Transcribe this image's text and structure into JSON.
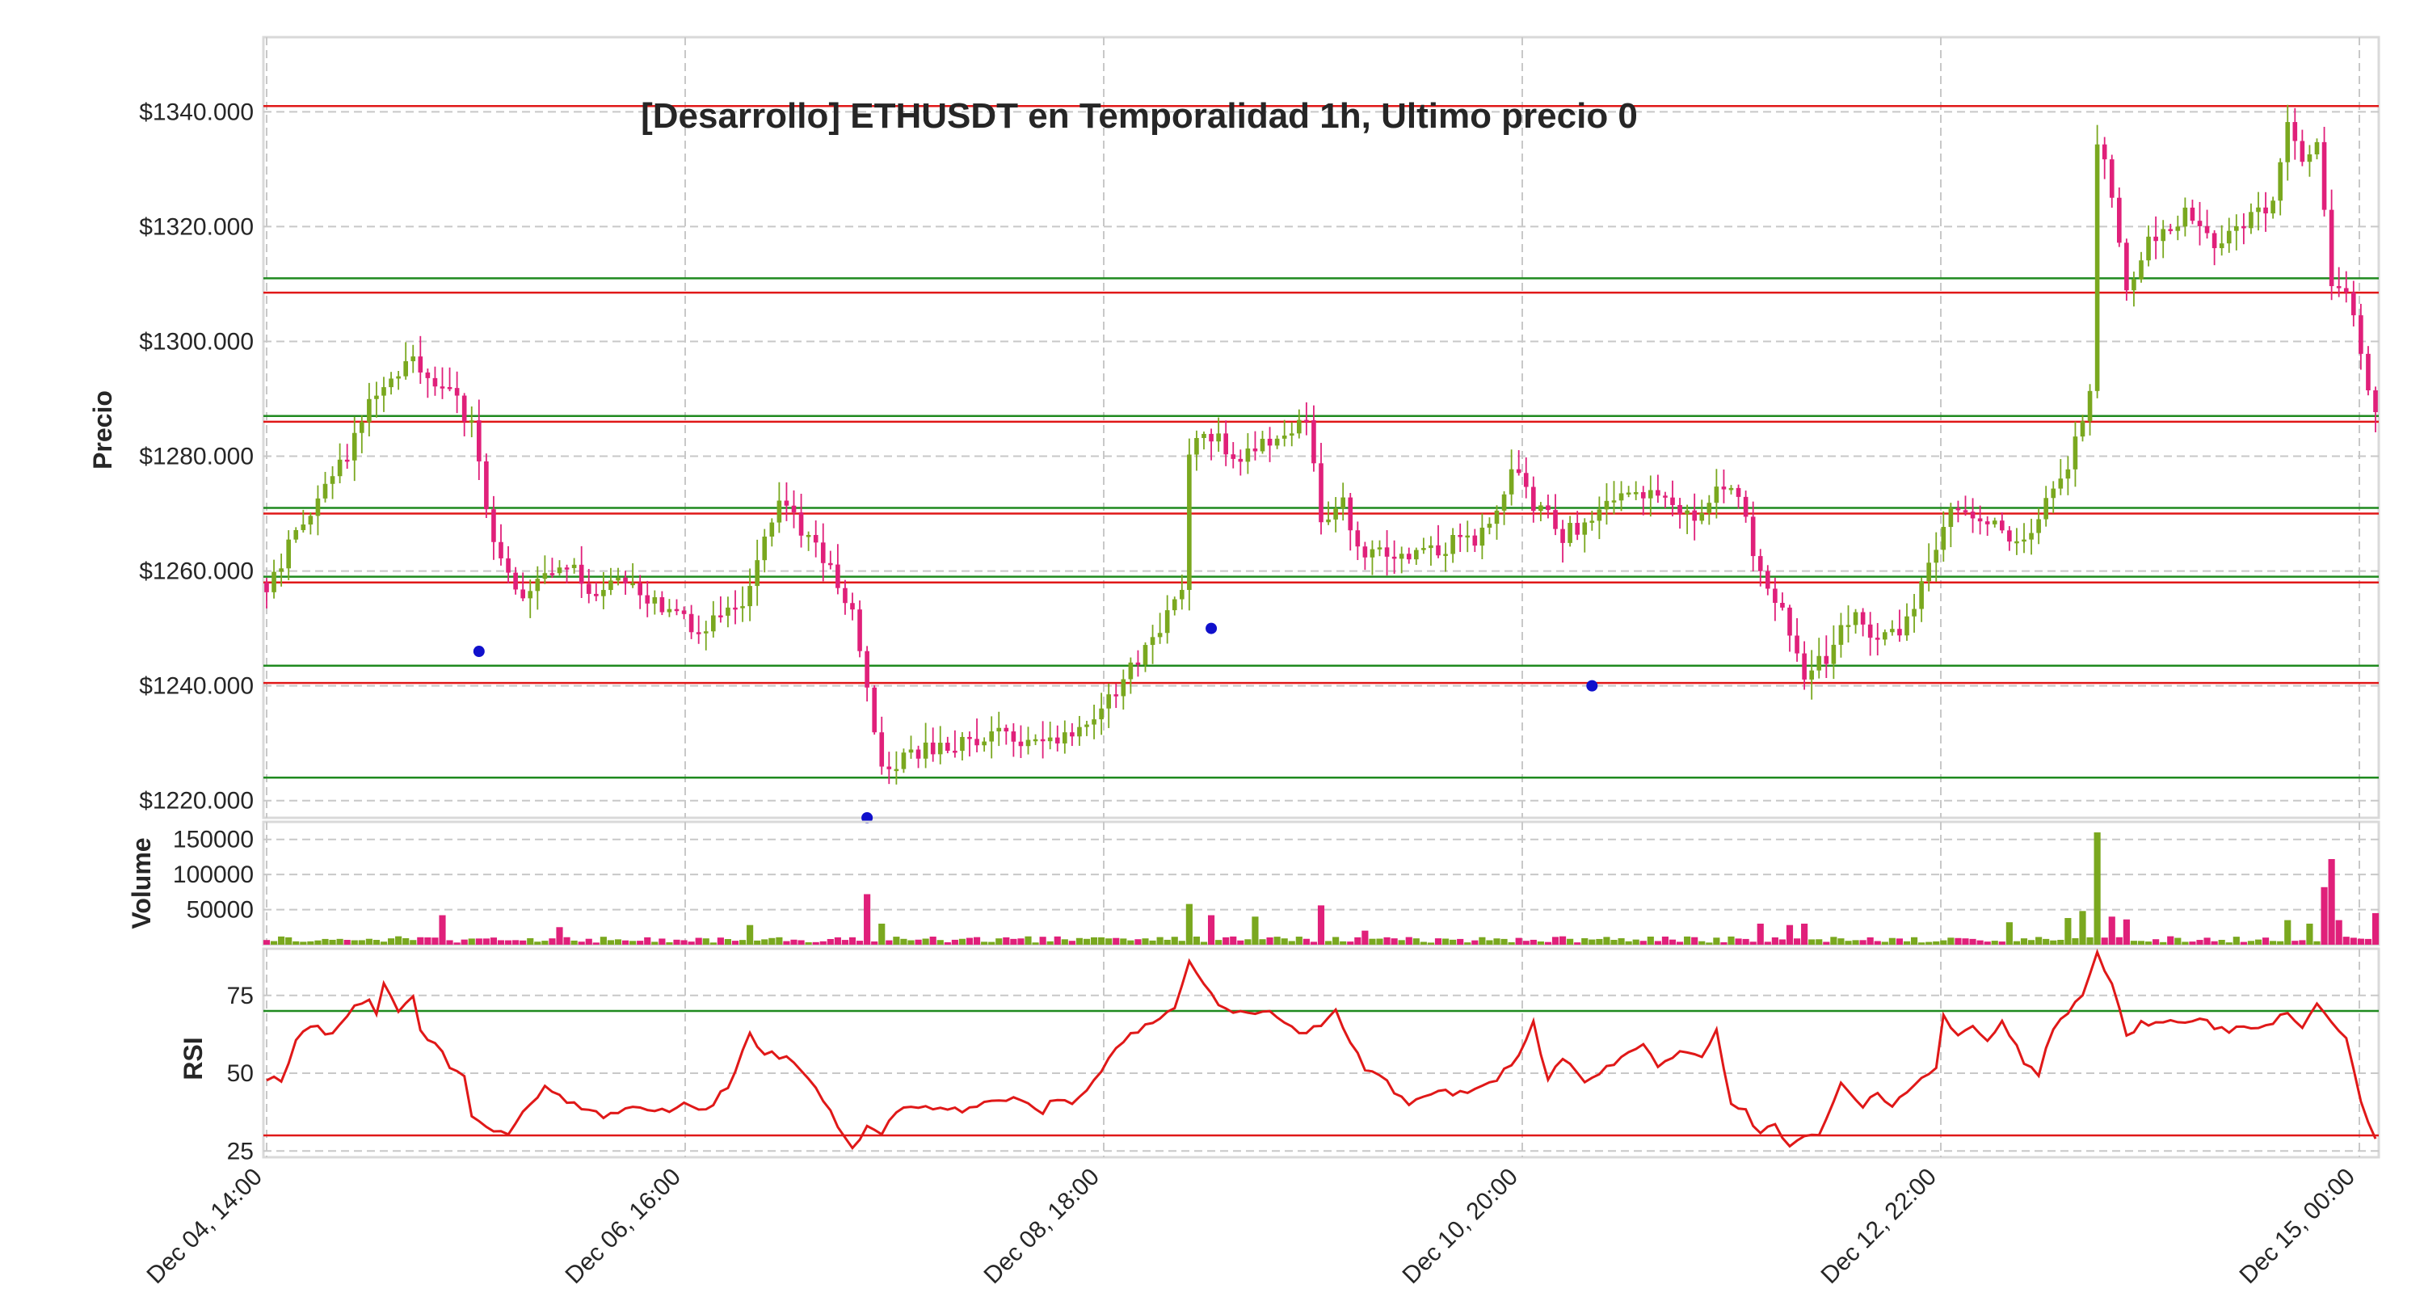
{
  "chart_data": [
    {
      "type": "candlestick",
      "title": "[Desarrollo] ETHUSDT en Temporalidad 1h, Ultimo precio 0",
      "ylabel": "Precio",
      "ylim": [
        1217,
        1353
      ],
      "yticks": [
        1220,
        1240,
        1260,
        1280,
        1300,
        1320,
        1340
      ],
      "ytick_labels": [
        "$1220.000",
        "$1240.000",
        "$1260.000",
        "$1280.000",
        "$1300.000",
        "$1320.000",
        "$1340.000"
      ],
      "x_tick_labels": [
        "Dec 04, 14:00",
        "Dec 06, 16:00",
        "Dec 08, 18:00",
        "Dec 10, 20:00",
        "Dec 12, 22:00",
        "Dec 15, 00:00"
      ],
      "grid": true,
      "colors": {
        "up": "#7aa81f",
        "down": "#e0207a",
        "support": "#1f8a1f",
        "resistance": "#e01818",
        "marker": "#1010cc"
      },
      "support_lines": [
        1224,
        1243.5,
        1259,
        1271,
        1287,
        1311
      ],
      "resistance_lines": [
        1240.5,
        1258,
        1270,
        1286,
        1308.5,
        1341
      ],
      "anchors": [
        [
          0,
          1258
        ],
        [
          5,
          1268
        ],
        [
          10,
          1278
        ],
        [
          15,
          1292
        ],
        [
          20,
          1296
        ],
        [
          25,
          1292
        ],
        [
          28,
          1285
        ],
        [
          31,
          1265
        ],
        [
          35,
          1255
        ],
        [
          40,
          1262
        ],
        [
          45,
          1256
        ],
        [
          50,
          1258
        ],
        [
          55,
          1252
        ],
        [
          60,
          1250
        ],
        [
          65,
          1254
        ],
        [
          70,
          1272
        ],
        [
          75,
          1265
        ],
        [
          80,
          1252
        ],
        [
          82,
          1238
        ],
        [
          84,
          1225
        ],
        [
          88,
          1228
        ],
        [
          95,
          1230
        ],
        [
          100,
          1232
        ],
        [
          105,
          1230
        ],
        [
          110,
          1232
        ],
        [
          115,
          1237
        ],
        [
          120,
          1246
        ],
        [
          125,
          1256
        ],
        [
          126,
          1280
        ],
        [
          128,
          1285
        ],
        [
          133,
          1280
        ],
        [
          138,
          1284
        ],
        [
          142,
          1287
        ],
        [
          144,
          1270
        ],
        [
          147,
          1272
        ],
        [
          150,
          1262
        ],
        [
          154,
          1263
        ],
        [
          160,
          1264
        ],
        [
          165,
          1266
        ],
        [
          168,
          1270
        ],
        [
          170,
          1279
        ],
        [
          173,
          1272
        ],
        [
          177,
          1266
        ],
        [
          182,
          1270
        ],
        [
          185,
          1274
        ],
        [
          190,
          1274
        ],
        [
          195,
          1270
        ],
        [
          200,
          1276
        ],
        [
          204,
          1260
        ],
        [
          207,
          1252
        ],
        [
          210,
          1242
        ],
        [
          213,
          1245
        ],
        [
          217,
          1254
        ],
        [
          220,
          1248
        ],
        [
          223,
          1250
        ],
        [
          227,
          1260
        ],
        [
          230,
          1271
        ],
        [
          233,
          1269
        ],
        [
          236,
          1268
        ],
        [
          240,
          1264
        ],
        [
          243,
          1272
        ],
        [
          246,
          1278
        ],
        [
          249,
          1290
        ],
        [
          250,
          1336
        ],
        [
          252,
          1325
        ],
        [
          254,
          1308
        ],
        [
          257,
          1318
        ],
        [
          262,
          1322
        ],
        [
          266,
          1316
        ],
        [
          270,
          1320
        ],
        [
          274,
          1325
        ],
        [
          276,
          1338
        ],
        [
          278,
          1330
        ],
        [
          280,
          1336
        ],
        [
          282,
          1310
        ],
        [
          285,
          1306
        ],
        [
          287,
          1290
        ],
        [
          288,
          1289
        ]
      ],
      "min_markers": [
        {
          "x": 29,
          "y": 1246
        },
        {
          "x": 82,
          "y": 1217
        },
        {
          "x": 129,
          "y": 1250
        },
        {
          "x": 181,
          "y": 1240
        }
      ],
      "n_bars": 289
    },
    {
      "type": "bar",
      "ylabel": "Volume",
      "ylim": [
        0,
        175000
      ],
      "yticks": [
        50000,
        100000,
        150000
      ],
      "ytick_labels": [
        "50000",
        "100000",
        "150000"
      ],
      "spikes": [
        {
          "x": 24,
          "v": 42000,
          "dir": "down"
        },
        {
          "x": 40,
          "v": 25000,
          "dir": "down"
        },
        {
          "x": 66,
          "v": 28000,
          "dir": "up"
        },
        {
          "x": 82,
          "v": 72000,
          "dir": "down"
        },
        {
          "x": 84,
          "v": 30000,
          "dir": "up"
        },
        {
          "x": 126,
          "v": 58000,
          "dir": "up"
        },
        {
          "x": 129,
          "v": 42000,
          "dir": "down"
        },
        {
          "x": 135,
          "v": 40000,
          "dir": "up"
        },
        {
          "x": 144,
          "v": 56000,
          "dir": "down"
        },
        {
          "x": 150,
          "v": 20000,
          "dir": "down"
        },
        {
          "x": 204,
          "v": 30000,
          "dir": "down"
        },
        {
          "x": 208,
          "v": 28000,
          "dir": "down"
        },
        {
          "x": 210,
          "v": 30000,
          "dir": "down"
        },
        {
          "x": 238,
          "v": 32000,
          "dir": "up"
        },
        {
          "x": 246,
          "v": 38000,
          "dir": "up"
        },
        {
          "x": 248,
          "v": 48000,
          "dir": "up"
        },
        {
          "x": 250,
          "v": 160000,
          "dir": "up"
        },
        {
          "x": 252,
          "v": 40000,
          "dir": "down"
        },
        {
          "x": 254,
          "v": 36000,
          "dir": "down"
        },
        {
          "x": 276,
          "v": 35000,
          "dir": "up"
        },
        {
          "x": 279,
          "v": 30000,
          "dir": "up"
        },
        {
          "x": 281,
          "v": 82000,
          "dir": "down"
        },
        {
          "x": 282,
          "v": 122000,
          "dir": "down"
        },
        {
          "x": 283,
          "v": 35000,
          "dir": "down"
        },
        {
          "x": 288,
          "v": 45000,
          "dir": "down"
        }
      ]
    },
    {
      "type": "line",
      "ylabel": "RSI",
      "ylim": [
        23,
        90
      ],
      "yticks": [
        25,
        50,
        75
      ],
      "ytick_labels": [
        "25",
        "50",
        "75"
      ],
      "upper_band": 70,
      "lower_band": 30,
      "line_color": "#e01818",
      "anchors": [
        [
          0,
          48
        ],
        [
          2,
          48
        ],
        [
          4,
          60
        ],
        [
          6,
          66
        ],
        [
          9,
          62
        ],
        [
          12,
          72
        ],
        [
          14,
          74
        ],
        [
          15,
          70
        ],
        [
          16,
          78
        ],
        [
          18,
          70
        ],
        [
          20,
          74
        ],
        [
          21,
          63
        ],
        [
          23,
          60
        ],
        [
          25,
          52
        ],
        [
          27,
          50
        ],
        [
          28,
          36
        ],
        [
          30,
          32
        ],
        [
          33,
          30
        ],
        [
          35,
          38
        ],
        [
          38,
          45
        ],
        [
          42,
          40
        ],
        [
          46,
          36
        ],
        [
          50,
          40
        ],
        [
          54,
          38
        ],
        [
          58,
          40
        ],
        [
          60,
          38
        ],
        [
          63,
          46
        ],
        [
          66,
          62
        ],
        [
          68,
          57
        ],
        [
          72,
          54
        ],
        [
          74,
          48
        ],
        [
          76,
          42
        ],
        [
          78,
          32
        ],
        [
          80,
          27
        ],
        [
          82,
          32
        ],
        [
          84,
          30
        ],
        [
          86,
          38
        ],
        [
          90,
          40
        ],
        [
          94,
          38
        ],
        [
          98,
          40
        ],
        [
          102,
          42
        ],
        [
          106,
          38
        ],
        [
          108,
          42
        ],
        [
          110,
          40
        ],
        [
          113,
          48
        ],
        [
          116,
          58
        ],
        [
          120,
          66
        ],
        [
          124,
          70
        ],
        [
          126,
          85
        ],
        [
          128,
          78
        ],
        [
          130,
          72
        ],
        [
          132,
          69
        ],
        [
          136,
          70
        ],
        [
          138,
          68
        ],
        [
          140,
          65
        ],
        [
          142,
          62
        ],
        [
          144,
          66
        ],
        [
          146,
          70
        ],
        [
          148,
          60
        ],
        [
          150,
          52
        ],
        [
          152,
          50
        ],
        [
          154,
          44
        ],
        [
          156,
          40
        ],
        [
          158,
          42
        ],
        [
          160,
          44
        ],
        [
          164,
          44
        ],
        [
          168,
          48
        ],
        [
          171,
          56
        ],
        [
          173,
          66
        ],
        [
          175,
          48
        ],
        [
          177,
          55
        ],
        [
          180,
          46
        ],
        [
          182,
          50
        ],
        [
          185,
          55
        ],
        [
          188,
          60
        ],
        [
          190,
          52
        ],
        [
          193,
          56
        ],
        [
          196,
          56
        ],
        [
          198,
          64
        ],
        [
          199,
          52
        ],
        [
          200,
          40
        ],
        [
          202,
          38
        ],
        [
          204,
          30
        ],
        [
          206,
          34
        ],
        [
          208,
          26
        ],
        [
          210,
          30
        ],
        [
          212,
          30
        ],
        [
          215,
          46
        ],
        [
          218,
          40
        ],
        [
          220,
          44
        ],
        [
          222,
          40
        ],
        [
          226,
          48
        ],
        [
          228,
          52
        ],
        [
          229,
          69
        ],
        [
          231,
          62
        ],
        [
          233,
          66
        ],
        [
          235,
          60
        ],
        [
          237,
          66
        ],
        [
          240,
          54
        ],
        [
          242,
          50
        ],
        [
          244,
          64
        ],
        [
          246,
          70
        ],
        [
          248,
          76
        ],
        [
          250,
          88
        ],
        [
          252,
          78
        ],
        [
          254,
          62
        ],
        [
          256,
          66
        ],
        [
          260,
          66
        ],
        [
          264,
          68
        ],
        [
          266,
          64
        ],
        [
          270,
          64
        ],
        [
          274,
          66
        ],
        [
          276,
          70
        ],
        [
          278,
          64
        ],
        [
          280,
          72
        ],
        [
          282,
          66
        ],
        [
          284,
          62
        ],
        [
          286,
          40
        ],
        [
          288,
          30
        ]
      ]
    }
  ]
}
